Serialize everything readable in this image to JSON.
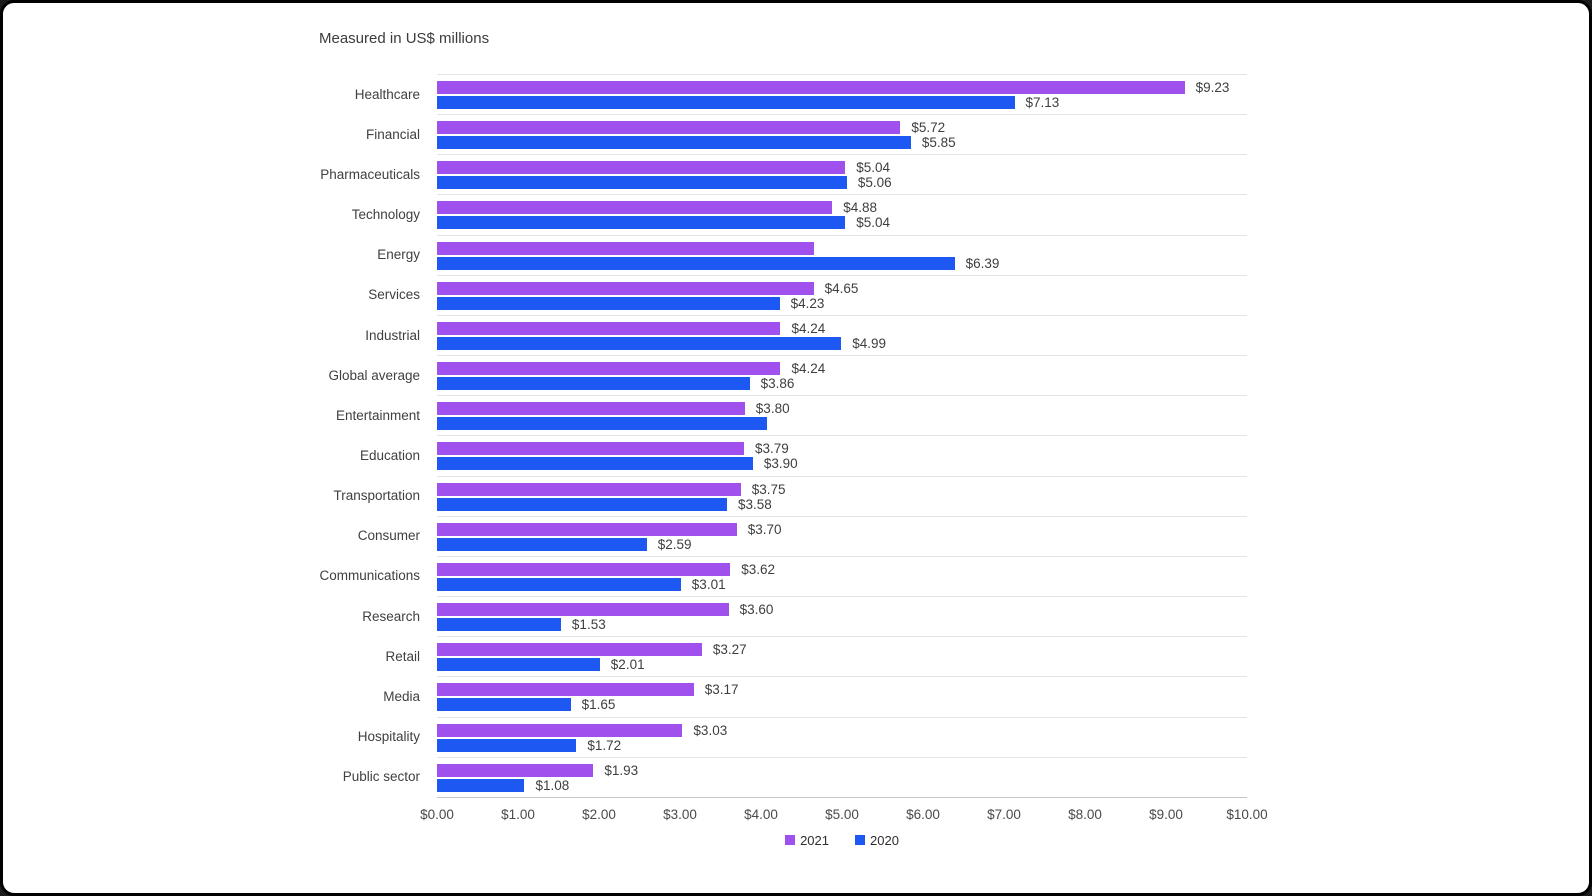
{
  "chart": {
    "title": "Measured in US$ millions"
  },
  "chart_data": {
    "type": "bar",
    "orientation": "horizontal",
    "title": "Measured in US$ millions",
    "xlabel": "",
    "ylabel": "",
    "xlim": [
      0,
      10
    ],
    "x_tick_labels": [
      "$0.00",
      "$1.00",
      "$2.00",
      "$3.00",
      "$4.00",
      "$5.00",
      "$6.00",
      "$7.00",
      "$8.00",
      "$9.00",
      "$10.00"
    ],
    "grid": "row-separators-only",
    "legend_position": "bottom-center",
    "series_names": [
      "2021",
      "2020"
    ],
    "colors": {
      "s2021": "#a050ec",
      "s2020": "#1e58f2"
    },
    "categories": [
      "Healthcare",
      "Financial",
      "Pharmaceuticals",
      "Technology",
      "Energy",
      "Services",
      "Industrial",
      "Global average",
      "Entertainment",
      "Education",
      "Transportation",
      "Consumer",
      "Communications",
      "Research",
      "Retail",
      "Media",
      "Hospitality",
      "Public sector"
    ],
    "rows": [
      {
        "category": "Healthcare",
        "v2021": 9.23,
        "label2021": "$9.23",
        "v2020": 7.13,
        "label2020": "$7.13"
      },
      {
        "category": "Financial",
        "v2021": 5.72,
        "label2021": "$5.72",
        "v2020": 5.85,
        "label2020": "$5.85"
      },
      {
        "category": "Pharmaceuticals",
        "v2021": 5.04,
        "label2021": "$5.04",
        "v2020": 5.06,
        "label2020": "$5.06"
      },
      {
        "category": "Technology",
        "v2021": 4.88,
        "label2021": "$4.88",
        "v2020": 5.04,
        "label2020": "$5.04"
      },
      {
        "category": "Energy",
        "v2021": 4.65,
        "label2021": "",
        "v2020": 6.39,
        "label2020": "$6.39"
      },
      {
        "category": "Services",
        "v2021": 4.65,
        "label2021": "$4.65",
        "v2020": 4.23,
        "label2020": "$4.23"
      },
      {
        "category": "Industrial",
        "v2021": 4.24,
        "label2021": "$4.24",
        "v2020": 4.99,
        "label2020": "$4.99"
      },
      {
        "category": "Global average",
        "v2021": 4.24,
        "label2021": "$4.24",
        "v2020": 3.86,
        "label2020": "$3.86"
      },
      {
        "category": "Entertainment",
        "v2021": 3.8,
        "label2021": "$3.80",
        "v2020": 4.08,
        "label2020": ""
      },
      {
        "category": "Education",
        "v2021": 3.79,
        "label2021": "$3.79",
        "v2020": 3.9,
        "label2020": "$3.90"
      },
      {
        "category": "Transportation",
        "v2021": 3.75,
        "label2021": "$3.75",
        "v2020": 3.58,
        "label2020": "$3.58"
      },
      {
        "category": "Consumer",
        "v2021": 3.7,
        "label2021": "$3.70",
        "v2020": 2.59,
        "label2020": "$2.59"
      },
      {
        "category": "Communications",
        "v2021": 3.62,
        "label2021": "$3.62",
        "v2020": 3.01,
        "label2020": "$3.01"
      },
      {
        "category": "Research",
        "v2021": 3.6,
        "label2021": "$3.60",
        "v2020": 1.53,
        "label2020": "$1.53"
      },
      {
        "category": "Retail",
        "v2021": 3.27,
        "label2021": "$3.27",
        "v2020": 2.01,
        "label2020": "$2.01"
      },
      {
        "category": "Media",
        "v2021": 3.17,
        "label2021": "$3.17",
        "v2020": 1.65,
        "label2020": "$1.65"
      },
      {
        "category": "Hospitality",
        "v2021": 3.03,
        "label2021": "$3.03",
        "v2020": 1.72,
        "label2020": "$1.72"
      },
      {
        "category": "Public sector",
        "v2021": 1.93,
        "label2021": "$1.93",
        "v2020": 1.08,
        "label2020": "$1.08"
      }
    ],
    "legend": [
      {
        "label": "2021",
        "color": "#a050ec"
      },
      {
        "label": "2020",
        "color": "#1e58f2"
      }
    ]
  }
}
